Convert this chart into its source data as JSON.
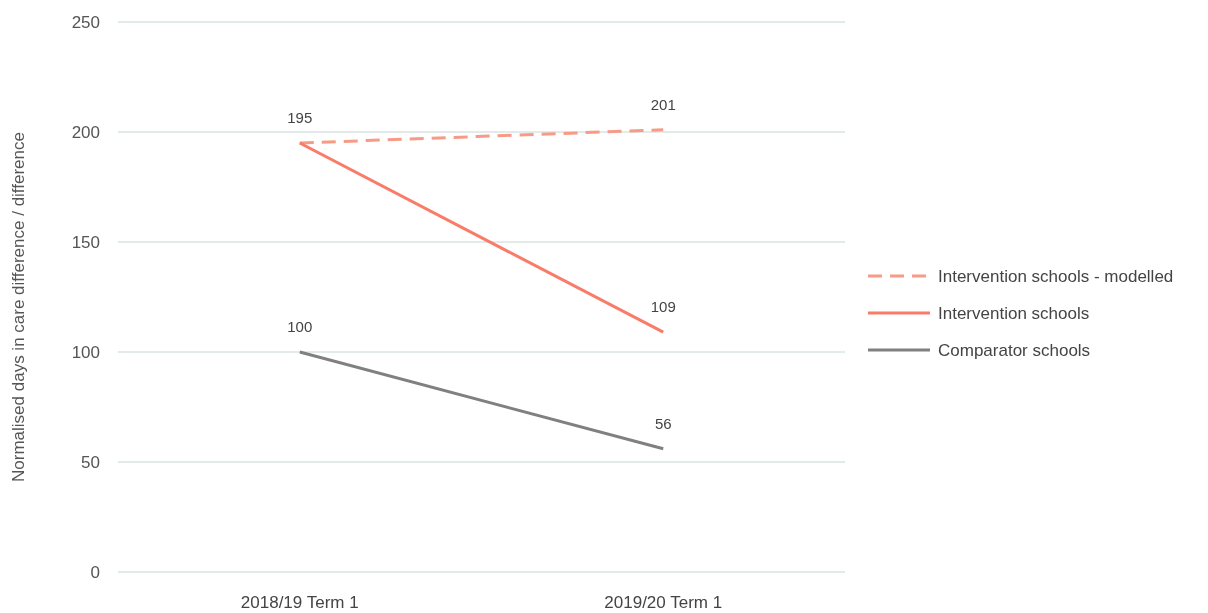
{
  "chart_data": {
    "type": "line",
    "ylabel": "Normalised days in care difference / difference",
    "categories": [
      "2018/19 Term 1",
      "2019/20 Term 1"
    ],
    "series": [
      {
        "name": "Intervention schools - modelled",
        "color": "#f79a86",
        "values": [
          195,
          201
        ],
        "value_labels": [
          "195",
          "201"
        ],
        "line_style": "dashed"
      },
      {
        "name": "Intervention schools",
        "color": "#f87c68",
        "values": [
          195,
          109
        ],
        "value_labels": [
          null,
          "109"
        ],
        "line_style": "solid"
      },
      {
        "name": "Comparator schools",
        "color": "#808080",
        "values": [
          100,
          56
        ],
        "value_labels": [
          "100",
          "56"
        ],
        "line_style": "solid"
      }
    ],
    "ylim": [
      0,
      250
    ],
    "yticks": [
      0,
      50,
      100,
      150,
      200,
      250
    ],
    "grid": "y",
    "legend": "right",
    "marker": "none"
  }
}
